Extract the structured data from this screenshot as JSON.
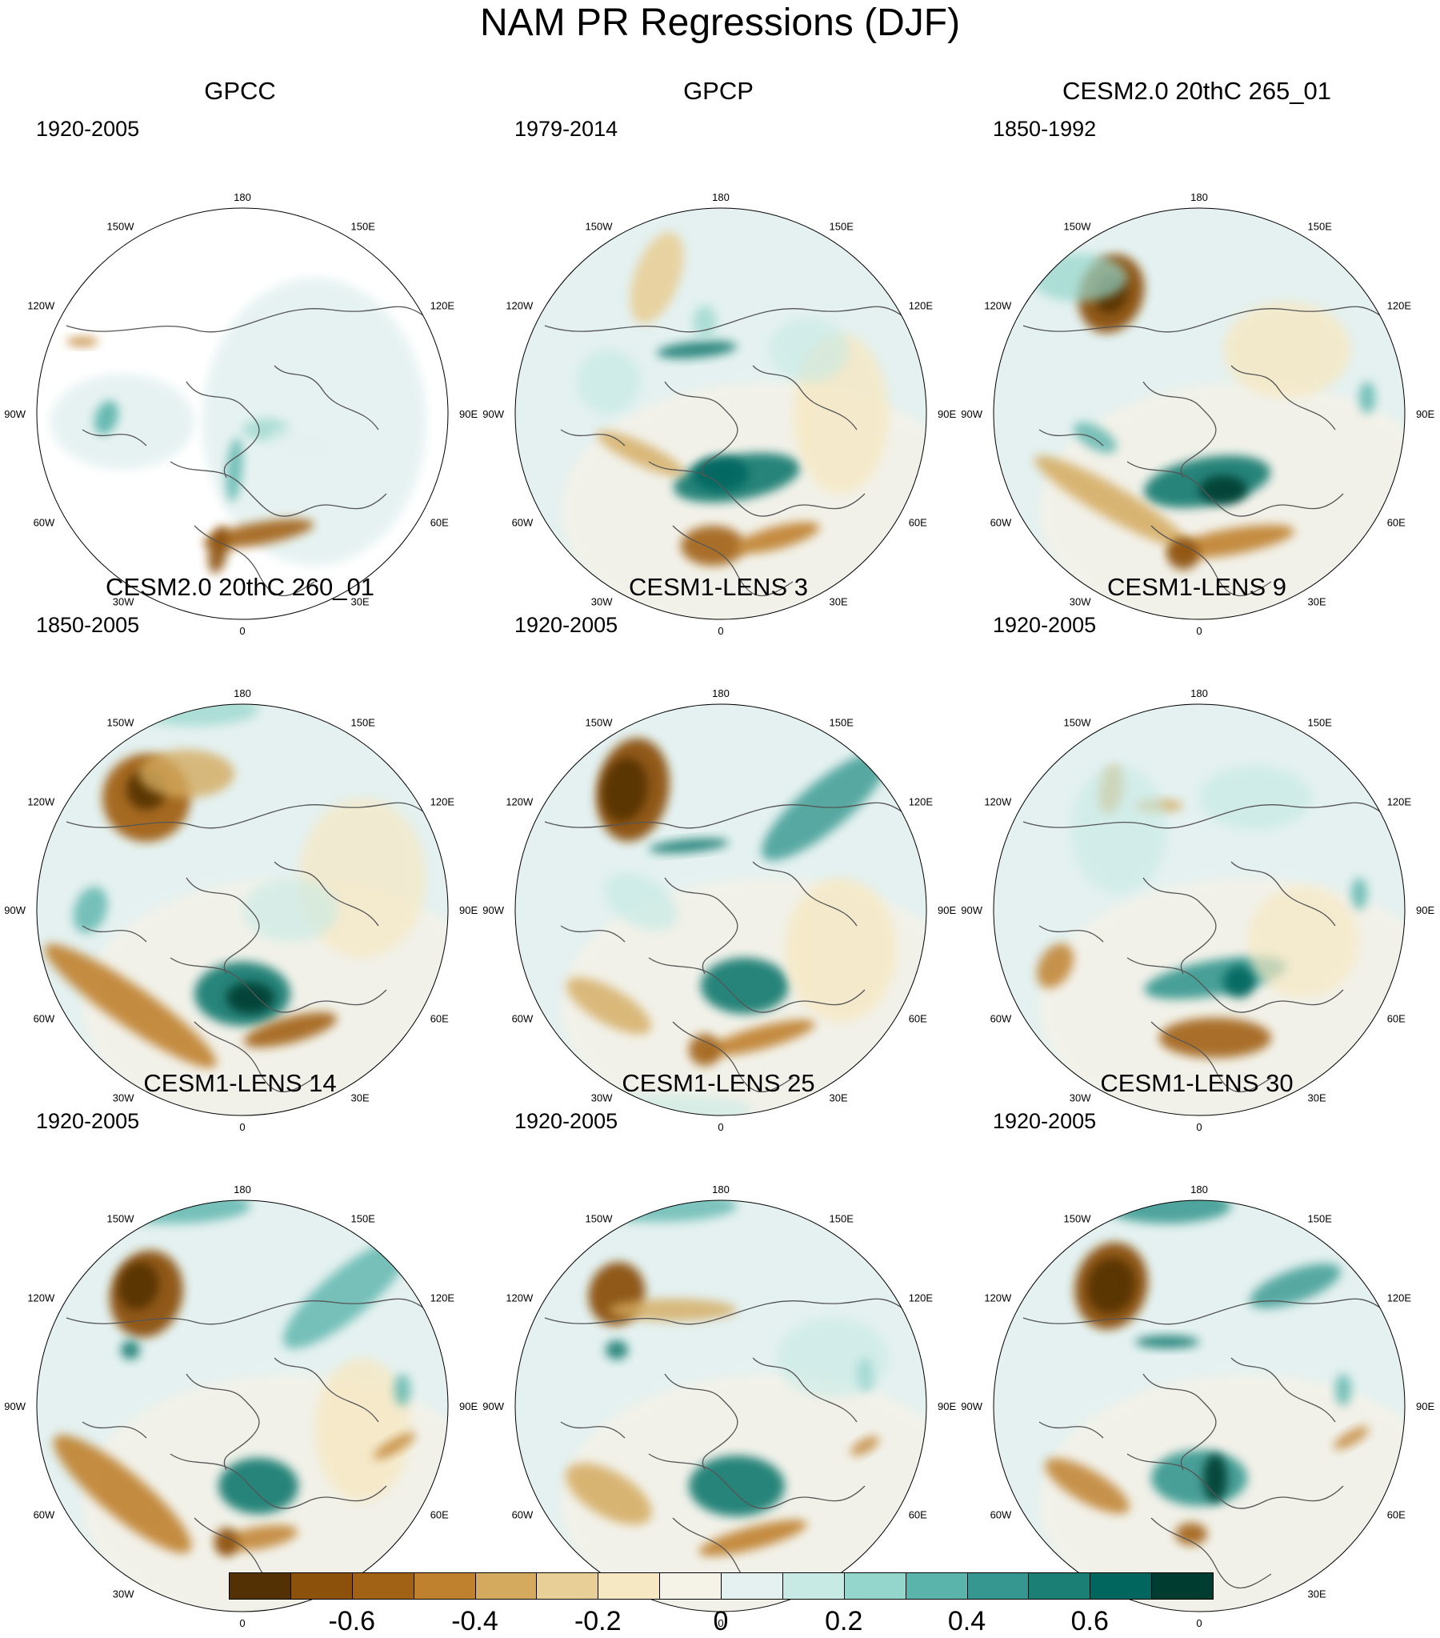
{
  "title": "NAM PR Regressions (DJF)",
  "longitude_labels": [
    "180",
    "150E",
    "120E",
    "90E",
    "60E",
    "30E",
    "0",
    "30W",
    "60W",
    "90W",
    "120W",
    "150W"
  ],
  "panels": [
    {
      "title": "GPCC",
      "period": "1920-2005"
    },
    {
      "title": "GPCP",
      "period": "1979-2014"
    },
    {
      "title": "CESM2.0 20thC 265_01",
      "period": "1850-1992"
    },
    {
      "title": "CESM2.0 20thC 260_01",
      "period": "1850-2005"
    },
    {
      "title": "CESM1-LENS 3",
      "period": "1920-2005"
    },
    {
      "title": "CESM1-LENS 9",
      "period": "1920-2005"
    },
    {
      "title": "CESM1-LENS 14",
      "period": "1920-2005"
    },
    {
      "title": "CESM1-LENS 25",
      "period": "1920-2005"
    },
    {
      "title": "CESM1-LENS 30",
      "period": "1920-2005"
    }
  ],
  "colorbar": {
    "colors": [
      "#543005",
      "#8c510a",
      "#a26215",
      "#bf812d",
      "#d4aa5e",
      "#e8cf98",
      "#f6e8c3",
      "#f5f2e8",
      "#e4f1f0",
      "#c7eae5",
      "#94d6cb",
      "#5ab4ac",
      "#35978f",
      "#1c7f75",
      "#01665e",
      "#003c30"
    ],
    "labels": [
      "-0.6",
      "-0.4",
      "-0.2",
      "0",
      "0.2",
      "0.4",
      "0.6"
    ]
  }
}
